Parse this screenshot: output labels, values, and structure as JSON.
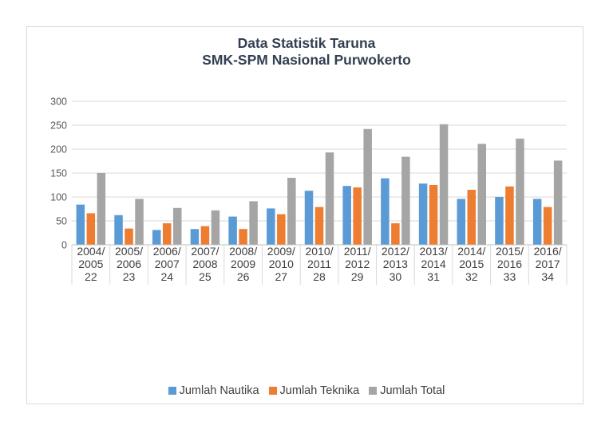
{
  "chart_data": {
    "type": "bar",
    "title_lines": [
      "Data Statistik Taruna",
      "SMK-SPM Nasional Purwokerto"
    ],
    "categories": [
      [
        "2004/",
        "2005",
        "22"
      ],
      [
        "2005/",
        "2006",
        "23"
      ],
      [
        "2006/",
        "2007",
        "24"
      ],
      [
        "2007/",
        "2008",
        "25"
      ],
      [
        "2008/",
        "2009",
        "26"
      ],
      [
        "2009/",
        "2010",
        "27"
      ],
      [
        "2010/",
        "2011",
        "28"
      ],
      [
        "2011/",
        "2012",
        "29"
      ],
      [
        "2012/",
        "2013",
        "30"
      ],
      [
        "2013/",
        "2014",
        "31"
      ],
      [
        "2014/",
        "2015",
        "32"
      ],
      [
        "2015/",
        "2016",
        "33"
      ],
      [
        "2016/",
        "2017",
        "34"
      ]
    ],
    "series": [
      {
        "name": "Jumlah Nautika",
        "color": "#5b9bd5",
        "values": [
          84,
          62,
          31,
          33,
          59,
          76,
          113,
          123,
          139,
          128,
          96,
          100,
          96
        ]
      },
      {
        "name": "Jumlah Teknika",
        "color": "#ed7d31",
        "values": [
          66,
          34,
          45,
          39,
          33,
          64,
          79,
          120,
          45,
          125,
          115,
          122,
          79
        ]
      },
      {
        "name": "Jumlah Total",
        "color": "#a5a5a5",
        "values": [
          150,
          96,
          77,
          72,
          91,
          140,
          193,
          242,
          184,
          252,
          211,
          222,
          176
        ]
      }
    ],
    "ylim": [
      0,
      300
    ],
    "yticks": [
      0,
      50,
      100,
      150,
      200,
      250,
      300
    ],
    "grid": true,
    "legend_position": "bottom"
  }
}
